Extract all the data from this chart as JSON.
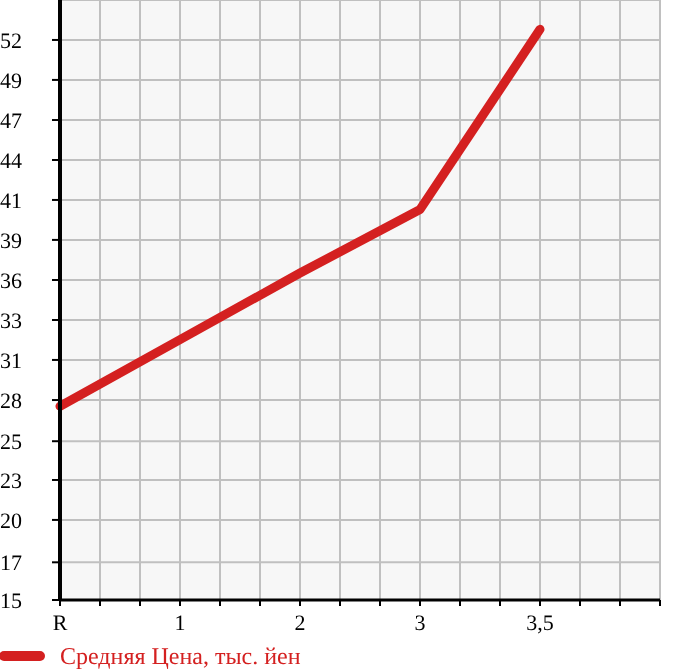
{
  "chart_data": {
    "type": "line",
    "categories": [
      "R",
      "1",
      "2",
      "3",
      "3,5"
    ],
    "series": [
      {
        "name": "Средняя Цена, тыс. йен",
        "color": "#d42020",
        "values": [
          27.8,
          32.2,
          36.6,
          40.8,
          52.7
        ]
      }
    ],
    "ylim": [
      15,
      54.64
    ],
    "yticks": [
      15,
      {
        "value": 17.49,
        "label": "17"
      },
      {
        "value": 20.29,
        "label": "20"
      },
      {
        "value": 22.93,
        "label": "23"
      },
      {
        "value": 25.49,
        "label": "25"
      },
      {
        "value": 28.21,
        "label": "28"
      },
      {
        "value": 30.86,
        "label": "31"
      },
      {
        "value": 33.5,
        "label": "33"
      },
      {
        "value": 36.14,
        "label": "36"
      },
      {
        "value": 38.79,
        "label": "39"
      },
      {
        "value": 41.43,
        "label": "41"
      },
      {
        "value": 44.07,
        "label": "44"
      },
      {
        "value": 46.71,
        "label": "47"
      },
      {
        "value": 49.36,
        "label": "49"
      },
      52
    ],
    "grid": true,
    "legend": "bottom",
    "marker": "none",
    "line_style": "solid"
  }
}
